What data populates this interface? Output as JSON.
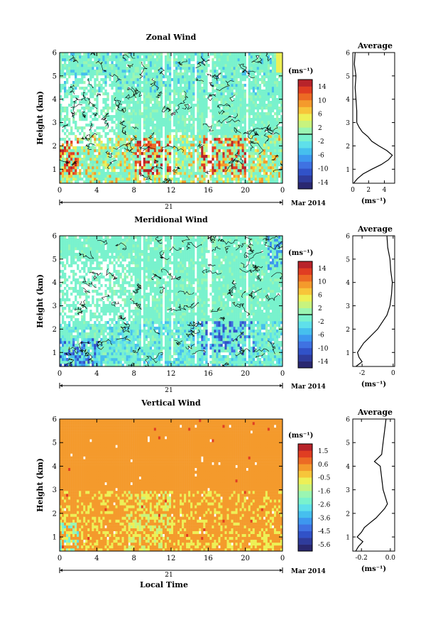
{
  "figure": {
    "xaxis_label": "Local Time",
    "date_label": "Mar 2014",
    "day_label": "21"
  },
  "chart_data": [
    {
      "type": "heatmap",
      "title": "Zonal Wind",
      "ylabel": "Height (km)",
      "xlabel": "",
      "x_ticks": [
        "0",
        "4",
        "8",
        "12",
        "16",
        "20",
        "0"
      ],
      "xlim": [
        0,
        24
      ],
      "y_ticks": [
        "1",
        "2",
        "3",
        "4",
        "5",
        "6"
      ],
      "ylim": [
        0.4,
        6
      ],
      "colorbar": {
        "unit": "(ms⁻¹)",
        "ticks": [
          "14",
          "10",
          "6",
          "2",
          "-2",
          "-6",
          "-10",
          "-14"
        ],
        "range": [
          -16,
          16
        ]
      },
      "average_profile": {
        "title": "Average",
        "xlabel": "(ms⁻¹)",
        "x_ticks": [
          "0",
          "2",
          "4"
        ],
        "xlim": [
          0,
          5.3
        ],
        "height": [
          0.4,
          0.6,
          0.8,
          1.0,
          1.2,
          1.4,
          1.6,
          1.8,
          2.0,
          2.2,
          2.4,
          2.6,
          2.8,
          3.0,
          3.5,
          4.0,
          4.5,
          5.0,
          5.5,
          6.0
        ],
        "value": [
          0.1,
          0.6,
          1.3,
          2.4,
          3.6,
          4.5,
          5.0,
          4.3,
          3.3,
          2.4,
          1.9,
          1.2,
          0.8,
          0.5,
          0.5,
          0.4,
          0.3,
          0.4,
          0.2,
          0.3
        ]
      }
    },
    {
      "type": "heatmap",
      "title": "Meridional Wind",
      "ylabel": "Height (km)",
      "xlabel": "",
      "x_ticks": [
        "0",
        "4",
        "8",
        "12",
        "16",
        "20",
        "0"
      ],
      "xlim": [
        0,
        24
      ],
      "y_ticks": [
        "1",
        "2",
        "3",
        "4",
        "5",
        "6"
      ],
      "ylim": [
        0.4,
        6
      ],
      "colorbar": {
        "unit": "(ms⁻¹)",
        "ticks": [
          "14",
          "10",
          "6",
          "2",
          "-2",
          "-6",
          "-10",
          "-14"
        ],
        "range": [
          -16,
          16
        ]
      },
      "average_profile": {
        "title": "Average",
        "xlabel": "(ms⁻¹)",
        "x_ticks": [
          "-2",
          "0"
        ],
        "xlim": [
          -2.6,
          0.1
        ],
        "height": [
          0.4,
          0.6,
          0.8,
          1.0,
          1.2,
          1.4,
          1.6,
          1.8,
          2.0,
          2.2,
          2.4,
          2.6,
          2.8,
          3.0,
          3.5,
          4.0,
          4.5,
          5.0,
          5.5,
          6.0
        ],
        "value": [
          -2.4,
          -2.0,
          -2.2,
          -2.3,
          -2.1,
          -1.9,
          -1.6,
          -1.3,
          -1.0,
          -0.8,
          -0.6,
          -0.4,
          -0.3,
          -0.2,
          -0.1,
          -0.05,
          -0.15,
          -0.2,
          -0.35,
          -0.4
        ]
      }
    },
    {
      "type": "heatmap",
      "title": "Vertical Wind",
      "ylabel": "Height (km)",
      "xlabel": "Local Time",
      "x_ticks": [
        "0",
        "4",
        "8",
        "12",
        "16",
        "20",
        "0"
      ],
      "xlim": [
        0,
        24
      ],
      "y_ticks": [
        "1",
        "2",
        "3",
        "4",
        "5",
        "6"
      ],
      "ylim": [
        0.4,
        6
      ],
      "colorbar": {
        "unit": "(ms⁻¹)",
        "ticks": [
          "1.5",
          "0.6",
          "-0.5",
          "-1.6",
          "-2.6",
          "-3.6",
          "-4.5",
          "-5.6"
        ],
        "range": [
          -6,
          2
        ]
      },
      "average_profile": {
        "title": "Average",
        "xlabel": "(ms⁻¹)",
        "x_ticks": [
          "-0.2",
          "0.0"
        ],
        "xlim": [
          -0.26,
          0.03
        ],
        "height": [
          0.4,
          0.6,
          0.8,
          1.0,
          1.2,
          1.4,
          1.6,
          1.8,
          2.0,
          2.2,
          2.4,
          2.6,
          2.8,
          3.0,
          3.5,
          4.0,
          4.2,
          4.5,
          5.0,
          5.5,
          6.0
        ],
        "value": [
          -0.24,
          -0.22,
          -0.19,
          -0.23,
          -0.2,
          -0.18,
          -0.14,
          -0.1,
          -0.07,
          -0.04,
          -0.02,
          -0.03,
          -0.04,
          -0.05,
          -0.06,
          -0.07,
          -0.11,
          -0.06,
          -0.05,
          -0.04,
          -0.03
        ]
      }
    }
  ]
}
